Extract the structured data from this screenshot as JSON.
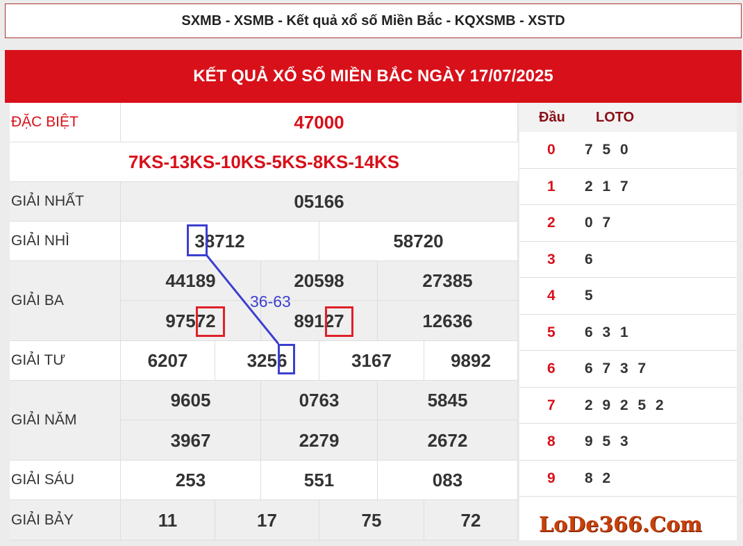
{
  "top_title": "SXMB - XSMB - Kết quả xổ số Miền Bắc - KQXSMB - XSTD",
  "header": "KẾT QUẢ XỔ SỐ MIỀN BẮC NGÀY 17/07/2025",
  "prizes": {
    "db": {
      "label": "ĐẶC BIỆT",
      "value": "47000"
    },
    "codes": "7KS-13KS-10KS-5KS-8KS-14KS",
    "g1": {
      "label": "GIẢI NHẤT",
      "values": [
        "05166"
      ]
    },
    "g2": {
      "label": "GIẢI NHÌ",
      "values": [
        "38712",
        "58720"
      ]
    },
    "g3": {
      "label": "GIẢI BA",
      "values": [
        "44189",
        "20598",
        "27385",
        "97572",
        "89127",
        "12636"
      ]
    },
    "g4": {
      "label": "GIẢI TƯ",
      "values": [
        "6207",
        "3256",
        "3167",
        "9892"
      ]
    },
    "g5": {
      "label": "GIẢI NĂM",
      "values": [
        "9605",
        "0763",
        "5845",
        "3967",
        "2279",
        "2672"
      ]
    },
    "g6": {
      "label": "GIẢI SÁU",
      "values": [
        "253",
        "551",
        "083"
      ]
    },
    "g7": {
      "label": "GIẢI BẢY",
      "values": [
        "11",
        "17",
        "75",
        "72"
      ]
    }
  },
  "loto": {
    "head_label": "Đầu",
    "loto_label": "LOTO",
    "rows": [
      {
        "d": "0",
        "v": "7 5 0"
      },
      {
        "d": "1",
        "v": "2 1 7"
      },
      {
        "d": "2",
        "v": "0 7"
      },
      {
        "d": "3",
        "v": "6"
      },
      {
        "d": "4",
        "v": "5"
      },
      {
        "d": "5",
        "v": "6 3 1"
      },
      {
        "d": "6",
        "v": "6 7 3 7"
      },
      {
        "d": "7",
        "v": "2 9 2 5 2"
      },
      {
        "d": "8",
        "v": "9 5 3"
      },
      {
        "d": "9",
        "v": "8 2"
      }
    ]
  },
  "logo": "LoDe366.Com",
  "annotation": {
    "pair": "36-63",
    "blue": "#3b3fd0",
    "red": "#e0202a"
  }
}
